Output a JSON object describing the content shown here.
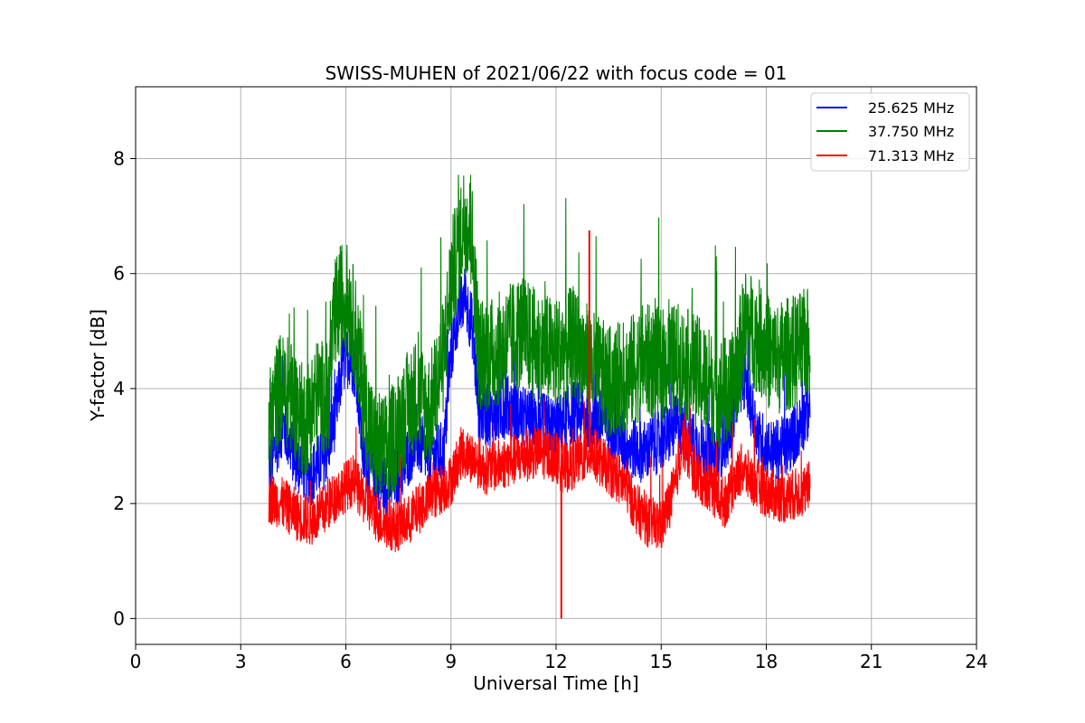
{
  "chart_data": {
    "type": "line",
    "title": "SWISS-MUHEN of 2021/06/22 with focus code = 01",
    "xlabel": "Universal Time [h]",
    "ylabel": "Y-factor [dB]",
    "xlim": [
      0,
      24
    ],
    "ylim": [
      -0.45,
      9.25
    ],
    "x_ticks": [
      0,
      3,
      6,
      9,
      12,
      15,
      18,
      21,
      24
    ],
    "y_ticks": [
      0,
      2,
      4,
      6,
      8
    ],
    "grid": true,
    "legend_position": "top-right",
    "series": [
      {
        "name": "25.625 MHz",
        "color": "#0000ff",
        "x": [
          3.8,
          4.2,
          4.6,
          5.0,
          5.4,
          5.7,
          5.9,
          6.1,
          6.3,
          6.5,
          6.8,
          7.2,
          7.6,
          8.0,
          8.4,
          8.8,
          9.0,
          9.2,
          9.4,
          9.6,
          9.8,
          10.2,
          10.6,
          11.0,
          11.5,
          12.0,
          12.5,
          13.0,
          13.5,
          14.0,
          14.5,
          15.0,
          15.5,
          16.0,
          16.5,
          17.0,
          17.2,
          17.4,
          17.6,
          17.8,
          18.2,
          18.6,
          19.0,
          19.25
        ],
        "y": [
          2.6,
          3.4,
          2.7,
          2.5,
          2.8,
          3.5,
          4.4,
          4.6,
          4.3,
          2.8,
          2.5,
          2.3,
          2.6,
          3.1,
          2.8,
          2.9,
          4.6,
          5.3,
          5.6,
          5.1,
          3.6,
          3.5,
          3.7,
          3.5,
          3.4,
          3.3,
          3.6,
          3.5,
          3.4,
          3.0,
          2.9,
          3.1,
          3.4,
          3.0,
          2.8,
          3.3,
          4.1,
          4.2,
          3.6,
          3.1,
          2.9,
          3.0,
          3.4,
          3.7
        ]
      },
      {
        "name": "37.750 MHz",
        "color": "#008000",
        "x": [
          3.8,
          4.1,
          4.4,
          4.8,
          5.2,
          5.5,
          5.7,
          5.9,
          6.1,
          6.3,
          6.5,
          6.8,
          7.2,
          7.6,
          8.0,
          8.4,
          8.8,
          9.0,
          9.2,
          9.4,
          9.6,
          9.8,
          10.2,
          10.6,
          11.0,
          11.5,
          12.0,
          12.5,
          13.0,
          13.5,
          14.0,
          14.5,
          15.0,
          15.5,
          16.0,
          16.5,
          17.0,
          17.4,
          17.8,
          18.2,
          18.6,
          19.0,
          19.25
        ],
        "y": [
          3.3,
          4.0,
          3.9,
          3.4,
          3.9,
          3.8,
          5.3,
          5.6,
          5.5,
          4.9,
          3.9,
          3.0,
          2.9,
          3.5,
          3.9,
          3.6,
          4.6,
          5.9,
          6.4,
          7.0,
          6.6,
          4.6,
          4.6,
          4.8,
          5.0,
          4.7,
          4.6,
          4.8,
          4.4,
          4.1,
          4.2,
          4.5,
          4.4,
          4.5,
          4.3,
          4.0,
          3.9,
          5.1,
          4.9,
          4.5,
          4.6,
          4.7,
          4.8
        ]
      },
      {
        "name": "71.313 MHz",
        "color": "#ff0000",
        "x": [
          3.8,
          4.2,
          4.6,
          5.0,
          5.4,
          5.8,
          6.2,
          6.6,
          7.0,
          7.4,
          7.8,
          8.2,
          8.6,
          9.0,
          9.3,
          9.6,
          10.0,
          10.5,
          11.0,
          11.5,
          12.0,
          12.2,
          12.5,
          13.0,
          13.5,
          14.0,
          14.3,
          14.6,
          15.0,
          15.4,
          15.6,
          16.0,
          16.4,
          16.8,
          17.1,
          17.3,
          17.6,
          18.0,
          18.5,
          19.0,
          19.25
        ],
        "y": [
          2.1,
          2.0,
          1.8,
          1.7,
          1.9,
          2.2,
          2.4,
          2.0,
          1.7,
          1.6,
          1.7,
          2.0,
          2.2,
          2.4,
          2.9,
          2.8,
          2.6,
          2.7,
          2.8,
          2.9,
          2.8,
          2.6,
          2.7,
          2.9,
          2.6,
          2.3,
          1.9,
          1.7,
          1.6,
          2.3,
          3.1,
          2.5,
          2.3,
          2.0,
          2.4,
          2.6,
          2.4,
          2.2,
          2.1,
          2.2,
          2.3
        ]
      }
    ],
    "annotations": [
      {
        "type": "spike",
        "series": "71.313 MHz",
        "x": 12.15,
        "y": 0.0
      },
      {
        "type": "spike",
        "series": "71.313 MHz",
        "x": 12.95,
        "y": 6.75
      }
    ]
  }
}
